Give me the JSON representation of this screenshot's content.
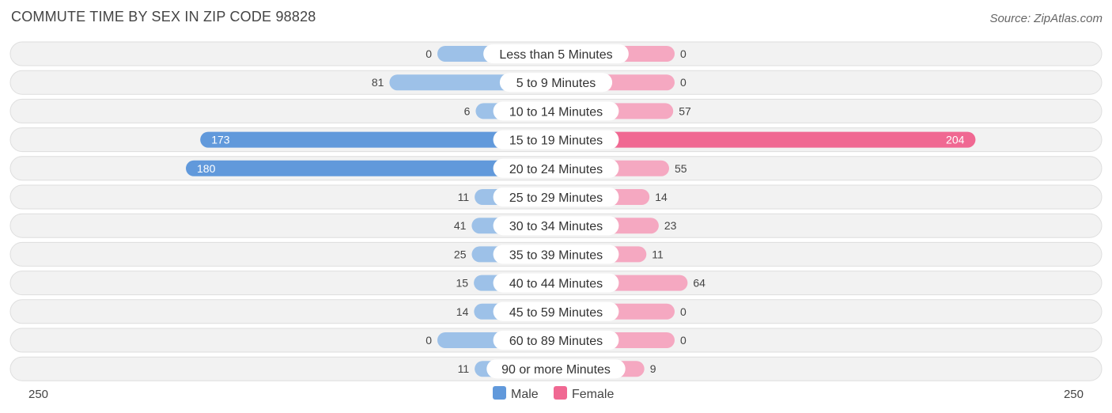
{
  "title": "COMMUTE TIME BY SEX IN ZIP CODE 98828",
  "source": "Source: ZipAtlas.com",
  "colors": {
    "male_light": "#9dc1e8",
    "male_strong": "#6199db",
    "female_light": "#f5a8c1",
    "female_strong": "#f06892"
  },
  "chart_data": {
    "type": "bar",
    "orientation": "horizontal-diverging",
    "categories": [
      "Less than 5 Minutes",
      "5 to 9 Minutes",
      "10 to 14 Minutes",
      "15 to 19 Minutes",
      "20 to 24 Minutes",
      "25 to 29 Minutes",
      "30 to 34 Minutes",
      "35 to 39 Minutes",
      "40 to 44 Minutes",
      "45 to 59 Minutes",
      "60 to 89 Minutes",
      "90 or more Minutes"
    ],
    "series": [
      {
        "name": "Male",
        "values": [
          0,
          81,
          6,
          173,
          180,
          11,
          41,
          25,
          15,
          14,
          0,
          11
        ]
      },
      {
        "name": "Female",
        "values": [
          0,
          0,
          57,
          204,
          55,
          14,
          23,
          11,
          64,
          0,
          0,
          9
        ]
      }
    ],
    "axis": {
      "left_label": "250",
      "right_label": "250",
      "max": 250
    },
    "legend": {
      "position": "bottom-center",
      "items": [
        "Male",
        "Female"
      ]
    }
  }
}
